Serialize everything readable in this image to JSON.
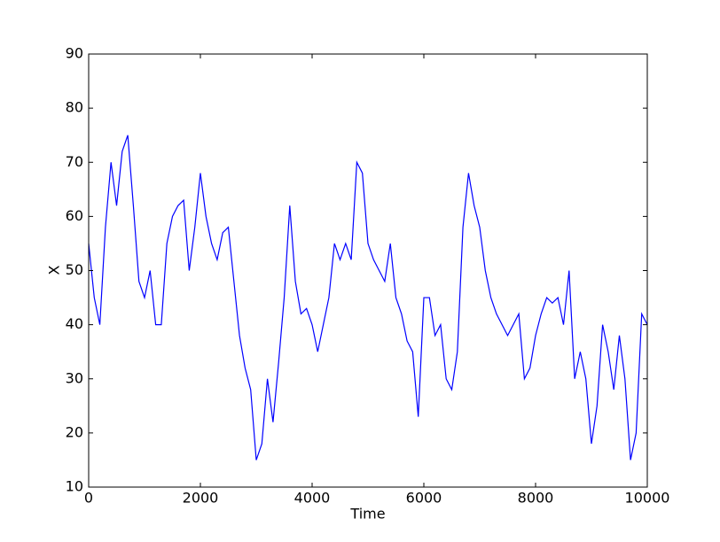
{
  "chart_data": {
    "type": "line",
    "x_label": "Time",
    "y_label": "X",
    "x": [
      0,
      100,
      200,
      300,
      400,
      500,
      600,
      700,
      800,
      900,
      1000,
      1100,
      1200,
      1300,
      1400,
      1500,
      1600,
      1700,
      1800,
      1900,
      2000,
      2100,
      2200,
      2300,
      2400,
      2500,
      2600,
      2700,
      2800,
      2900,
      3000,
      3100,
      3200,
      3300,
      3400,
      3500,
      3600,
      3700,
      3800,
      3900,
      4000,
      4100,
      4200,
      4300,
      4400,
      4500,
      4600,
      4700,
      4800,
      4900,
      5000,
      5100,
      5200,
      5300,
      5400,
      5500,
      5600,
      5700,
      5800,
      5900,
      6000,
      6100,
      6200,
      6300,
      6400,
      6500,
      6600,
      6700,
      6800,
      6900,
      7000,
      7100,
      7200,
      7300,
      7400,
      7500,
      7600,
      7700,
      7800,
      7900,
      8000,
      8100,
      8200,
      8300,
      8400,
      8500,
      8600,
      8700,
      8800,
      8900,
      9000,
      9100,
      9200,
      9300,
      9400,
      9500,
      9600,
      9700,
      9800,
      9900,
      10000
    ],
    "series": [
      {
        "name": "X",
        "color": "#0000ff",
        "values": [
          55,
          45,
          40,
          58,
          70,
          62,
          72,
          75,
          62,
          48,
          45,
          50,
          40,
          40,
          55,
          60,
          62,
          63,
          50,
          58,
          68,
          60,
          55,
          52,
          57,
          58,
          48,
          38,
          32,
          28,
          15,
          18,
          30,
          22,
          33,
          45,
          62,
          48,
          42,
          43,
          40,
          35,
          40,
          45,
          55,
          52,
          55,
          52,
          70,
          68,
          55,
          52,
          50,
          48,
          55,
          45,
          42,
          37,
          35,
          23,
          45,
          45,
          38,
          40,
          30,
          28,
          35,
          58,
          68,
          62,
          58,
          50,
          45,
          42,
          40,
          38,
          40,
          42,
          30,
          32,
          38,
          42,
          45,
          44,
          45,
          40,
          50,
          30,
          35,
          30,
          18,
          25,
          40,
          35,
          28,
          38,
          30,
          15,
          20,
          42,
          40
        ]
      }
    ],
    "xlim": [
      0,
      10000
    ],
    "ylim": [
      10,
      90
    ],
    "xticks": [
      0,
      2000,
      4000,
      6000,
      8000,
      10000
    ],
    "yticks": [
      10,
      20,
      30,
      40,
      50,
      60,
      70,
      80,
      90
    ]
  }
}
